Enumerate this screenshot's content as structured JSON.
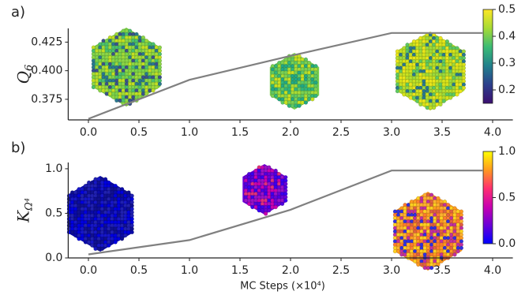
{
  "chart_data": [
    {
      "type": "line",
      "panel_label": "a)",
      "y_label": {
        "base": "Q",
        "sub": "6"
      },
      "x": [
        0.0,
        1.0,
        2.0,
        3.0,
        3.9
      ],
      "series": [
        {
          "color": "#808080",
          "values": [
            0.358,
            0.392,
            0.413,
            0.433,
            0.433
          ]
        }
      ],
      "xlim": [
        -0.2,
        4.2
      ],
      "xticks": [
        {
          "value": 0,
          "label": "0.0"
        },
        0.5,
        {
          "value": 1,
          "label": "1.0"
        },
        1.5,
        {
          "value": 2,
          "label": "2.0"
        },
        2.5,
        {
          "value": 3,
          "label": "3.0"
        },
        3.5,
        {
          "value": 4,
          "label": "4.0"
        }
      ],
      "ylim": [
        0.357,
        0.437
      ],
      "yticks": [
        0.375,
        {
          "value": 0.4,
          "label": "0.400"
        },
        0.425
      ],
      "colorbar": {
        "lim": [
          0.15,
          0.5
        ],
        "ticks": [
          0.2,
          0.3,
          0.4,
          0.5
        ],
        "colors": [
          "#3b0f70",
          "#2c3f8c",
          "#21808c",
          "#3bbb75",
          "#a6db35",
          "#fde725"
        ]
      }
    },
    {
      "type": "line",
      "panel_label": "b)",
      "y_label": {
        "base": "K",
        "sub": "Ω⁴"
      },
      "x_label": "MC Steps (×10⁴)",
      "x": [
        0.0,
        1.0,
        2.0,
        3.0,
        3.9
      ],
      "series": [
        {
          "color": "#808080",
          "values": [
            0.04,
            0.2,
            0.54,
            0.98,
            0.98
          ]
        }
      ],
      "xlim": [
        -0.2,
        4.2
      ],
      "xticks": [
        {
          "value": 0,
          "label": "0.0"
        },
        0.5,
        {
          "value": 1,
          "label": "1.0"
        },
        1.5,
        {
          "value": 2,
          "label": "2.0"
        },
        2.5,
        {
          "value": 3,
          "label": "3.0"
        },
        3.5,
        {
          "value": 4,
          "label": "4.0"
        }
      ],
      "ylim": [
        0,
        1.07
      ],
      "yticks": [
        {
          "value": 0,
          "label": "0.0"
        },
        0.5,
        {
          "value": 1,
          "label": "1.0"
        }
      ],
      "colorbar": {
        "lim": [
          0,
          1
        ],
        "ticks": [
          {
            "value": 0,
            "label": "0.0"
          },
          0.5,
          {
            "value": 1,
            "label": "1.0"
          }
        ],
        "colors": [
          "#0000ff",
          "#6a00d8",
          "#c800b0",
          "#ff3070",
          "#ff9a20",
          "#ffff00"
        ]
      }
    }
  ]
}
